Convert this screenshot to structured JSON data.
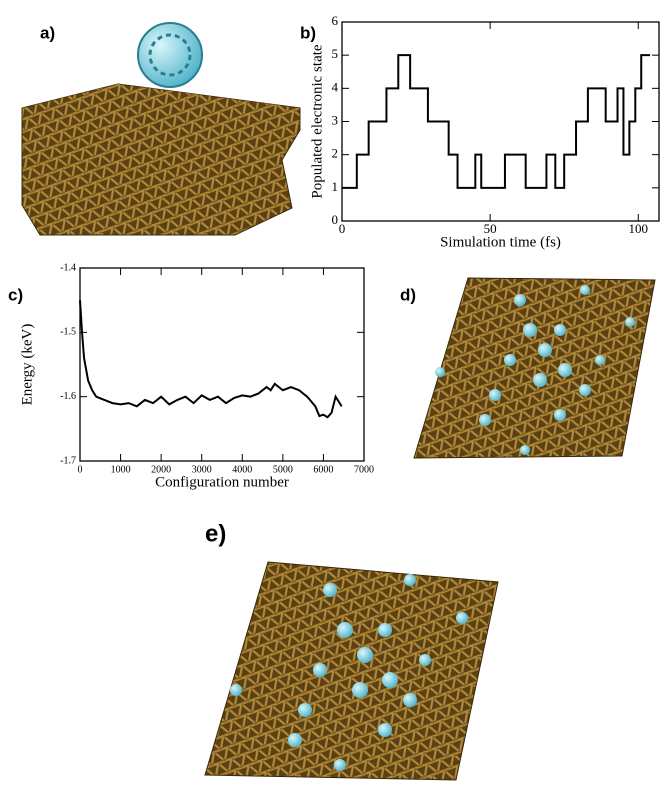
{
  "images": [
    {
      "label": "a)"
    },
    {
      "label": "d)"
    },
    {
      "label": "e)"
    }
  ],
  "chart_data": [
    {
      "type": "line",
      "label": "b)",
      "step": true,
      "color": "#000000",
      "y_label": "Populated electronic state",
      "x_label": "Simulation time (fs)",
      "x": [
        0,
        5,
        9,
        15,
        19,
        23,
        29,
        36,
        39,
        45,
        47,
        55,
        62,
        69,
        72,
        75,
        79,
        83,
        89,
        93,
        95,
        97,
        99,
        101,
        104
      ],
      "values": [
        1,
        2,
        3,
        4,
        5,
        4,
        3,
        2,
        1,
        2,
        1,
        2,
        1,
        2,
        1,
        2,
        3,
        4,
        3,
        4,
        2,
        3,
        4,
        5,
        5
      ],
      "xlim": [
        0,
        107
      ],
      "ylim": [
        0,
        6
      ],
      "xticks": [
        0,
        50,
        100
      ],
      "yticks": [
        0,
        1,
        2,
        3,
        4,
        5,
        6
      ]
    },
    {
      "type": "line",
      "label": "c)",
      "step": false,
      "color": "#000000",
      "y_label": "Energy (keV)",
      "x_label": "Configuration number",
      "x": [
        0,
        50,
        100,
        200,
        300,
        400,
        600,
        800,
        1000,
        1200,
        1400,
        1600,
        1800,
        2000,
        2200,
        2400,
        2600,
        2800,
        3000,
        3200,
        3400,
        3600,
        3800,
        4000,
        4200,
        4400,
        4600,
        4700,
        4800,
        5000,
        5200,
        5400,
        5600,
        5800,
        5900,
        6000,
        6100,
        6200,
        6300,
        6450
      ],
      "values": [
        -1.45,
        -1.5,
        -1.54,
        -1.575,
        -1.59,
        -1.6,
        -1.605,
        -1.61,
        -1.612,
        -1.61,
        -1.615,
        -1.605,
        -1.61,
        -1.6,
        -1.612,
        -1.605,
        -1.6,
        -1.61,
        -1.598,
        -1.605,
        -1.6,
        -1.61,
        -1.602,
        -1.598,
        -1.6,
        -1.595,
        -1.585,
        -1.59,
        -1.58,
        -1.59,
        -1.585,
        -1.59,
        -1.6,
        -1.615,
        -1.63,
        -1.628,
        -1.632,
        -1.625,
        -1.6,
        -1.615
      ],
      "xlim": [
        0,
        7000
      ],
      "ylim": [
        -1.7,
        -1.4
      ],
      "xticks": [
        0,
        1000,
        2000,
        3000,
        4000,
        5000,
        6000,
        7000
      ],
      "yticks": [
        -1.7,
        -1.6,
        -1.5,
        -1.4
      ]
    }
  ]
}
